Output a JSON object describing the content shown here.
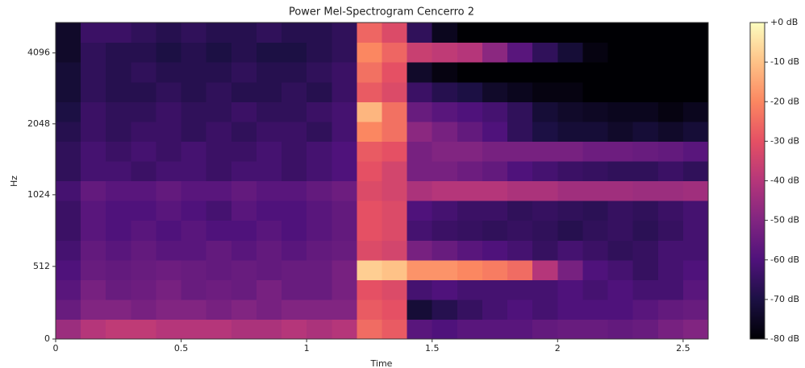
{
  "chart_data": {
    "type": "heatmap",
    "title": "Power Mel-Spectrogram Cencerro 2",
    "xlabel": "Time",
    "ylabel": "Hz",
    "xlim": [
      0,
      2.6
    ],
    "xticks": [
      0,
      0.5,
      1,
      1.5,
      2,
      2.5
    ],
    "ylim": [
      0,
      5512.5
    ],
    "yticks": [
      0,
      512,
      1024,
      2048,
      4096
    ],
    "yscale": "symlog",
    "colormap": "magma",
    "clim": [
      -80,
      0
    ],
    "cticks": [
      {
        "value": 0,
        "label": "+0 dB"
      },
      {
        "value": -10,
        "label": "-10 dB"
      },
      {
        "value": -20,
        "label": "-20 dB"
      },
      {
        "value": -30,
        "label": "-30 dB"
      },
      {
        "value": -40,
        "label": "-40 dB"
      },
      {
        "value": -50,
        "label": "-50 dB"
      },
      {
        "value": -60,
        "label": "-60 dB"
      },
      {
        "value": -70,
        "label": "-70 dB"
      },
      {
        "value": -80,
        "label": "-80 dB"
      }
    ],
    "z": [
      [
        -45,
        -40,
        -38,
        -38,
        -40,
        -40,
        -40,
        -42,
        -42,
        -40,
        -42,
        -40,
        -25,
        -28,
        -58,
        -60,
        -58,
        -58,
        -58,
        -56,
        -55,
        -55,
        -56,
        -55,
        -52,
        -50
      ],
      [
        -55,
        -50,
        -50,
        -52,
        -50,
        -50,
        -52,
        -50,
        -52,
        -50,
        -50,
        -50,
        -28,
        -30,
        -72,
        -68,
        -65,
        -62,
        -60,
        -62,
        -60,
        -60,
        -60,
        -58,
        -56,
        -55
      ],
      [
        -58,
        -52,
        -55,
        -54,
        -52,
        -55,
        -54,
        -55,
        -52,
        -55,
        -55,
        -52,
        -30,
        -32,
        -62,
        -60,
        -62,
        -62,
        -62,
        -62,
        -60,
        -62,
        -60,
        -62,
        -62,
        -58
      ],
      [
        -60,
        -55,
        -56,
        -55,
        -54,
        -55,
        -56,
        -55,
        -56,
        -55,
        -55,
        -52,
        -8,
        -10,
        -18,
        -18,
        -20,
        -22,
        -25,
        -40,
        -52,
        -60,
        -62,
        -65,
        -62,
        -60
      ],
      [
        -62,
        -56,
        -58,
        -56,
        -58,
        -58,
        -56,
        -58,
        -56,
        -58,
        -56,
        -55,
        -32,
        -34,
        -52,
        -55,
        -58,
        -60,
        -62,
        -65,
        -62,
        -64,
        -66,
        -65,
        -62,
        -62
      ],
      [
        -64,
        -58,
        -60,
        -58,
        -60,
        -58,
        -60,
        -60,
        -58,
        -60,
        -58,
        -56,
        -30,
        -32,
        -62,
        -64,
        -65,
        -66,
        -65,
        -66,
        -68,
        -66,
        -65,
        -67,
        -65,
        -62
      ],
      [
        -64,
        -58,
        -60,
        -60,
        -58,
        -60,
        -62,
        -58,
        -60,
        -60,
        -58,
        -56,
        -30,
        -32,
        -60,
        -62,
        -64,
        -64,
        -66,
        -65,
        -66,
        -67,
        -65,
        -66,
        -64,
        -62
      ],
      [
        -62,
        -56,
        -58,
        -58,
        -56,
        -58,
        -58,
        -56,
        -58,
        -58,
        -56,
        -54,
        -32,
        -34,
        -42,
        -40,
        -40,
        -40,
        -42,
        -42,
        -44,
        -44,
        -44,
        -45,
        -45,
        -44
      ],
      [
        -66,
        -62,
        -62,
        -64,
        -62,
        -62,
        -64,
        -62,
        -62,
        -64,
        -62,
        -60,
        -30,
        -34,
        -52,
        -52,
        -54,
        -56,
        -60,
        -62,
        -64,
        -65,
        -66,
        -66,
        -64,
        -66
      ],
      [
        -66,
        -62,
        -64,
        -62,
        -64,
        -62,
        -64,
        -64,
        -62,
        -64,
        -62,
        -60,
        -28,
        -30,
        -52,
        -50,
        -50,
        -52,
        -52,
        -52,
        -52,
        -54,
        -54,
        -55,
        -56,
        -58
      ],
      [
        -68,
        -64,
        -66,
        -64,
        -64,
        -66,
        -64,
        -66,
        -64,
        -64,
        -66,
        -62,
        -20,
        -24,
        -48,
        -52,
        -56,
        -60,
        -66,
        -70,
        -72,
        -72,
        -74,
        -72,
        -74,
        -72
      ],
      [
        -70,
        -64,
        -66,
        -66,
        -64,
        -66,
        -66,
        -64,
        -66,
        -66,
        -64,
        -62,
        -12,
        -24,
        -55,
        -58,
        -60,
        -62,
        -66,
        -72,
        -74,
        -75,
        -76,
        -76,
        -78,
        -76
      ],
      [
        -72,
        -66,
        -68,
        -68,
        -66,
        -68,
        -66,
        -68,
        -68,
        -66,
        -68,
        -64,
        -28,
        -32,
        -64,
        -68,
        -70,
        -74,
        -76,
        -78,
        -78,
        -80,
        -80,
        -80,
        -80,
        -80
      ],
      [
        -72,
        -66,
        -68,
        -66,
        -68,
        -68,
        -68,
        -66,
        -68,
        -68,
        -66,
        -64,
        -24,
        -30,
        -74,
        -78,
        -80,
        -80,
        -80,
        -80,
        -80,
        -80,
        -80,
        -80,
        -80,
        -80
      ],
      [
        -74,
        -66,
        -68,
        -68,
        -70,
        -68,
        -70,
        -68,
        -70,
        -70,
        -68,
        -66,
        -20,
        -26,
        -36,
        -38,
        -40,
        -48,
        -58,
        -66,
        -72,
        -78,
        -80,
        -80,
        -80,
        -80
      ],
      [
        -74,
        -64,
        -64,
        -66,
        -68,
        -66,
        -68,
        -68,
        -66,
        -68,
        -68,
        -66,
        -26,
        -32,
        -66,
        -76,
        -80,
        -80,
        -80,
        -80,
        -80,
        -80,
        -80,
        -80,
        -80,
        -80
      ]
    ]
  }
}
